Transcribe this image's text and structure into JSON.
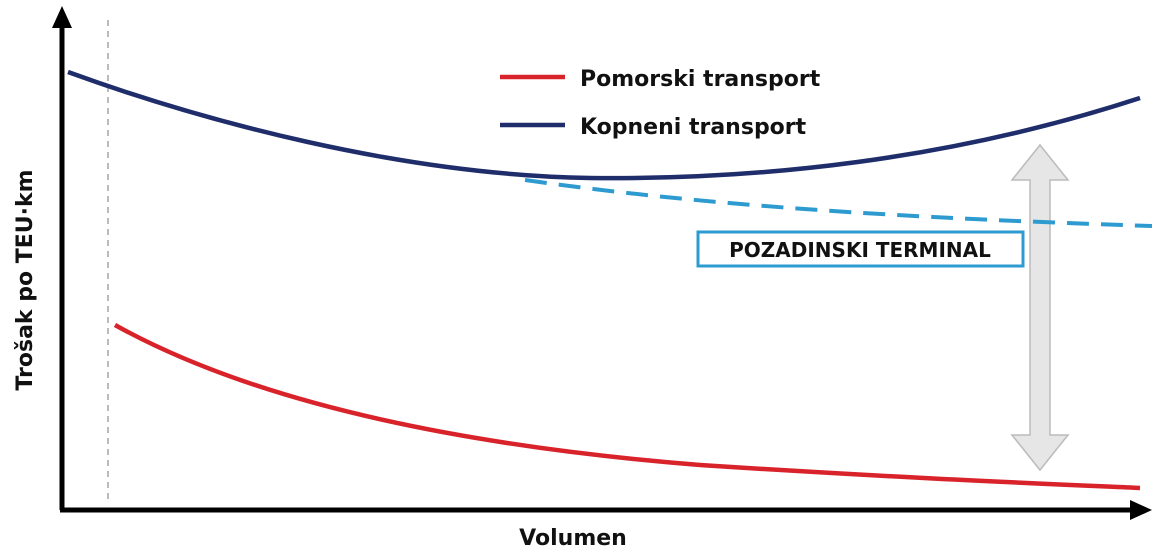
{
  "title": null,
  "legend": {
    "items": [
      {
        "label": "Pomorski transport"
      },
      {
        "label": "Kopneni transport"
      }
    ]
  },
  "annotation": {
    "label": "POZADINSKI TERMINAL"
  },
  "axes": {
    "x_label": "Volumen",
    "y_label": "Trošak po TEU·km"
  }
}
